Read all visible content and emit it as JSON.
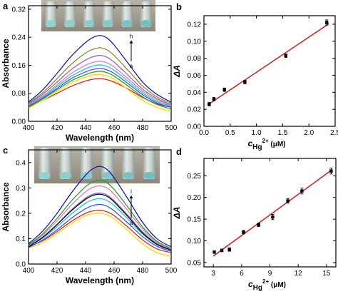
{
  "chart_data": [
    {
      "panel": "a",
      "type": "line",
      "xlabel": "Wavelength (nm)",
      "ylabel": "Absorbance",
      "xlim": [
        400,
        500
      ],
      "ylim": [
        0,
        0.33
      ],
      "xticks": [
        400,
        420,
        440,
        460,
        480,
        500
      ],
      "yticks": [
        0.0,
        0.08,
        0.16,
        0.24,
        0.32
      ],
      "ytick_decimals": 2,
      "x": [
        400,
        410,
        420,
        430,
        440,
        445,
        450,
        455,
        460,
        470,
        480,
        490,
        500
      ],
      "series": [
        {
          "color": "#d62728",
          "values": [
            0.04,
            0.06,
            0.08,
            0.1,
            0.115,
            0.12,
            0.122,
            0.119,
            0.112,
            0.092,
            0.068,
            0.05,
            0.04
          ]
        },
        {
          "color": "#ffd700",
          "values": [
            0.038,
            0.06,
            0.085,
            0.11,
            0.126,
            0.132,
            0.134,
            0.13,
            0.12,
            0.09,
            0.06,
            0.04,
            0.028
          ]
        },
        {
          "color": "#2ca02c",
          "values": [
            0.042,
            0.064,
            0.09,
            0.116,
            0.133,
            0.14,
            0.143,
            0.139,
            0.129,
            0.1,
            0.07,
            0.048,
            0.035
          ]
        },
        {
          "color": "#3b5bdb",
          "values": [
            0.044,
            0.066,
            0.094,
            0.122,
            0.141,
            0.148,
            0.151,
            0.147,
            0.137,
            0.107,
            0.076,
            0.053,
            0.04
          ]
        },
        {
          "color": "#1ec8c8",
          "values": [
            0.046,
            0.069,
            0.099,
            0.129,
            0.15,
            0.158,
            0.161,
            0.157,
            0.146,
            0.114,
            0.081,
            0.057,
            0.043
          ]
        },
        {
          "color": "#e377c2",
          "values": [
            0.048,
            0.072,
            0.104,
            0.137,
            0.16,
            0.168,
            0.172,
            0.167,
            0.155,
            0.121,
            0.086,
            0.061,
            0.046
          ]
        },
        {
          "color": "#9467bd",
          "values": [
            0.05,
            0.077,
            0.112,
            0.148,
            0.175,
            0.184,
            0.188,
            0.183,
            0.169,
            0.131,
            0.092,
            0.065,
            0.048
          ]
        },
        {
          "color": "#8c8c2a",
          "values": [
            0.052,
            0.082,
            0.122,
            0.163,
            0.195,
            0.205,
            0.21,
            0.204,
            0.188,
            0.145,
            0.101,
            0.07,
            0.052
          ]
        },
        {
          "color": "#1a1aa6",
          "values": [
            0.055,
            0.09,
            0.137,
            0.186,
            0.225,
            0.239,
            0.245,
            0.238,
            0.218,
            0.165,
            0.112,
            0.077,
            0.055
          ]
        }
      ],
      "arrow_labels": [
        "h",
        "a"
      ]
    },
    {
      "panel": "b",
      "type": "scatter",
      "xlabel_main": "c",
      "xlabel_sub": "Hg",
      "xlabel_sup": "2+",
      "xlabel_unit": " (μM)",
      "ylabel": "ΔA",
      "xlim": [
        0,
        2.5
      ],
      "ylim": [
        0,
        0.13
      ],
      "xticks": [
        0.0,
        0.5,
        1.0,
        1.5,
        2.0,
        2.5
      ],
      "yticks": [
        0.0,
        0.02,
        0.04,
        0.06,
        0.08,
        0.1,
        0.12
      ],
      "xtick_decimals": 1,
      "ytick_decimals": 2,
      "points": [
        {
          "x": 0.1,
          "y": 0.026,
          "err": 0.002
        },
        {
          "x": 0.19,
          "y": 0.032,
          "err": 0.002
        },
        {
          "x": 0.39,
          "y": 0.043,
          "err": 0.002
        },
        {
          "x": 0.78,
          "y": 0.052,
          "err": 0.002
        },
        {
          "x": 1.56,
          "y": 0.083,
          "err": 0.002
        },
        {
          "x": 2.34,
          "y": 0.122,
          "err": 0.003
        }
      ],
      "fit": {
        "x": [
          0.08,
          2.38
        ],
        "y": [
          0.0255,
          0.1205
        ],
        "color": "#d62728"
      }
    },
    {
      "panel": "c",
      "type": "line",
      "xlabel": "Wavelength (nm)",
      "ylabel": "Absorbance",
      "xlim": [
        400,
        500
      ],
      "ylim": [
        0,
        0.45
      ],
      "xticks": [
        400,
        420,
        440,
        460,
        480,
        500
      ],
      "yticks": [
        0.0,
        0.1,
        0.2,
        0.3,
        0.4
      ],
      "ytick_decimals": 1,
      "x": [
        400,
        410,
        420,
        430,
        440,
        445,
        450,
        455,
        460,
        470,
        480,
        490,
        500
      ],
      "series": [
        {
          "color": "#ffd700",
          "values": [
            0.062,
            0.085,
            0.12,
            0.16,
            0.19,
            0.198,
            0.2,
            0.194,
            0.178,
            0.13,
            0.08,
            0.045,
            0.03
          ]
        },
        {
          "color": "#d62728",
          "values": [
            0.068,
            0.092,
            0.128,
            0.168,
            0.2,
            0.209,
            0.212,
            0.206,
            0.191,
            0.144,
            0.095,
            0.06,
            0.045
          ]
        },
        {
          "color": "#3b5bdb",
          "values": [
            0.065,
            0.095,
            0.135,
            0.18,
            0.218,
            0.23,
            0.235,
            0.228,
            0.21,
            0.16,
            0.108,
            0.07,
            0.05
          ]
        },
        {
          "color": "#1ec8c8",
          "values": [
            0.07,
            0.102,
            0.147,
            0.197,
            0.24,
            0.253,
            0.258,
            0.25,
            0.231,
            0.176,
            0.118,
            0.076,
            0.054
          ]
        },
        {
          "color": "#9467bd",
          "values": [
            0.072,
            0.107,
            0.157,
            0.213,
            0.26,
            0.275,
            0.28,
            0.272,
            0.25,
            0.19,
            0.127,
            0.081,
            0.057
          ]
        },
        {
          "color": "#111111",
          "values": [
            0.068,
            0.105,
            0.155,
            0.21,
            0.255,
            0.27,
            0.275,
            0.267,
            0.245,
            0.185,
            0.122,
            0.078,
            0.055
          ]
        },
        {
          "color": "#e377c2",
          "values": [
            0.074,
            0.114,
            0.17,
            0.232,
            0.285,
            0.302,
            0.308,
            0.299,
            0.275,
            0.208,
            0.138,
            0.086,
            0.06
          ]
        },
        {
          "color": "#2ca02c",
          "values": [
            0.076,
            0.119,
            0.18,
            0.248,
            0.305,
            0.323,
            0.33,
            0.32,
            0.294,
            0.222,
            0.146,
            0.09,
            0.062
          ]
        },
        {
          "color": "#1a1aa6",
          "values": [
            0.08,
            0.13,
            0.2,
            0.28,
            0.35,
            0.375,
            0.385,
            0.373,
            0.34,
            0.254,
            0.164,
            0.1,
            0.068
          ]
        }
      ],
      "arrow_labels": [
        "i",
        "a"
      ]
    },
    {
      "panel": "d",
      "type": "scatter",
      "xlabel_main": "c",
      "xlabel_sub": "Hg",
      "xlabel_sup": "2+",
      "xlabel_unit": " (μM)",
      "ylabel": "ΔA",
      "xlim": [
        2,
        16
      ],
      "ylim": [
        0.04,
        0.29
      ],
      "xticks": [
        3,
        6,
        9,
        12,
        15
      ],
      "yticks": [
        0.05,
        0.1,
        0.15,
        0.2,
        0.25
      ],
      "xtick_decimals": 0,
      "ytick_decimals": 2,
      "points": [
        {
          "x": 3.1,
          "y": 0.074,
          "err": 0.003
        },
        {
          "x": 3.9,
          "y": 0.078,
          "err": 0.003
        },
        {
          "x": 4.7,
          "y": 0.08,
          "err": 0.004
        },
        {
          "x": 6.2,
          "y": 0.12,
          "err": 0.004
        },
        {
          "x": 7.8,
          "y": 0.137,
          "err": 0.004
        },
        {
          "x": 9.3,
          "y": 0.155,
          "err": 0.006
        },
        {
          "x": 10.9,
          "y": 0.192,
          "err": 0.005
        },
        {
          "x": 12.4,
          "y": 0.215,
          "err": 0.007
        },
        {
          "x": 15.5,
          "y": 0.261,
          "err": 0.007
        }
      ],
      "fit": {
        "x": [
          3.0,
          15.6
        ],
        "y": [
          0.065,
          0.264
        ],
        "color": "#d62728"
      }
    }
  ],
  "panel_letters": {
    "a": "a",
    "b": "b",
    "c": "c",
    "d": "d"
  }
}
